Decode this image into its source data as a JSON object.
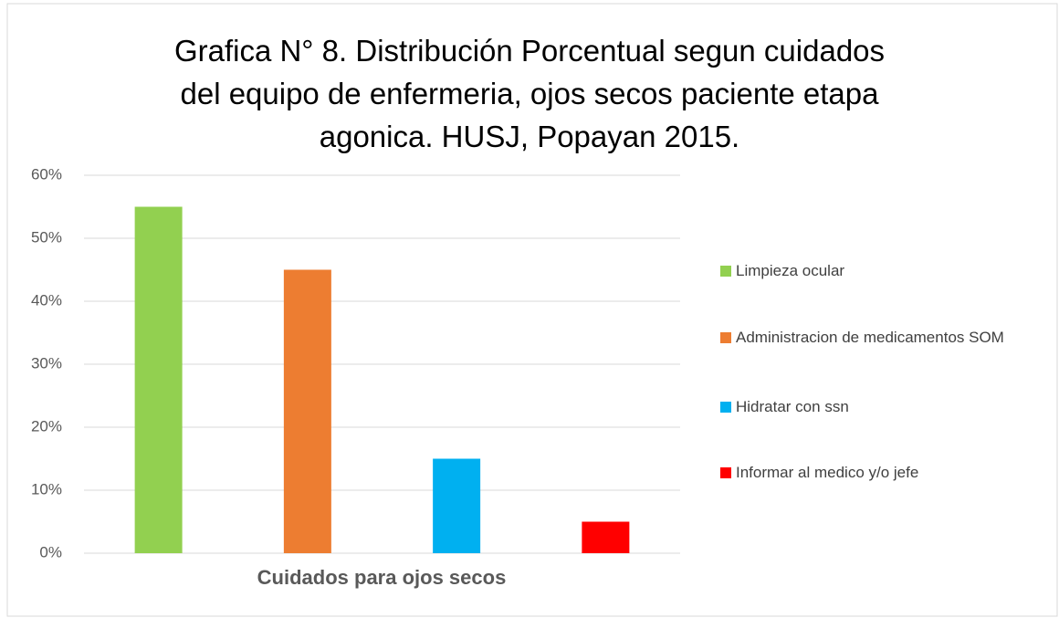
{
  "chart_data": {
    "type": "bar",
    "title": "Grafica N° 8. Distribución Porcentual segun cuidados del equipo de enfermeria, ojos secos paciente etapa agonica. HUSJ, Popayan 2015.",
    "categories": [
      "Cuidados para ojos secos"
    ],
    "series": [
      {
        "name": "Limpieza ocular",
        "color": "#92d050",
        "values": [
          55
        ]
      },
      {
        "name": "Administracion de medicamentos SOM",
        "color": "#ed7d31",
        "values": [
          45
        ]
      },
      {
        "name": "Hidratar  con ssn",
        "color": "#00b0f0",
        "values": [
          15
        ]
      },
      {
        "name": "Informar al medico y/o jefe",
        "color": "#ff0000",
        "values": [
          5
        ]
      }
    ],
    "ylim": [
      0,
      60
    ],
    "yticks": [
      {
        "value": 0,
        "label": "0%"
      },
      {
        "value": 10,
        "label": "10%"
      },
      {
        "value": 20,
        "label": "20%"
      },
      {
        "value": 30,
        "label": "30%"
      },
      {
        "value": 40,
        "label": "40%"
      },
      {
        "value": 50,
        "label": "50%"
      },
      {
        "value": 60,
        "label": "60%"
      }
    ],
    "grid": true,
    "legend": "right"
  }
}
